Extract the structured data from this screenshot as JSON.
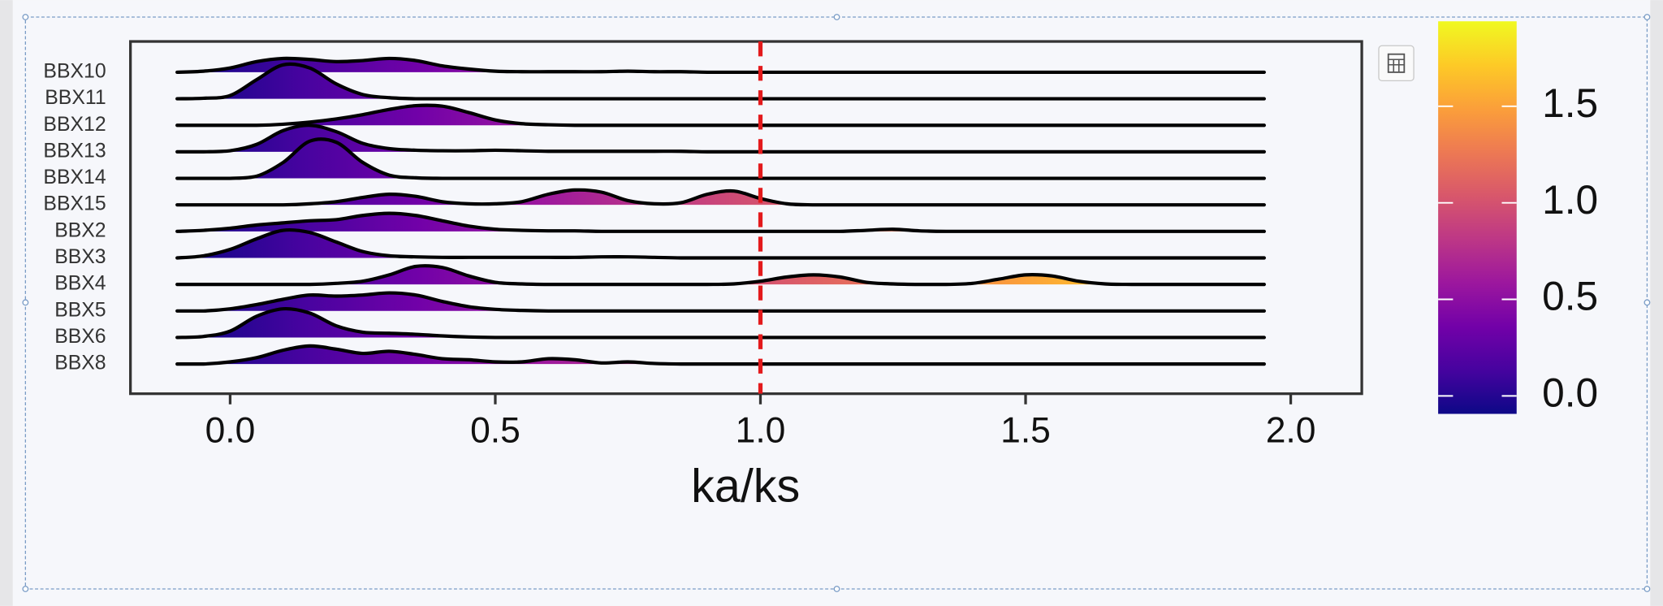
{
  "chart_data": {
    "type": "ridgeline",
    "x_label": "ka/ks",
    "x": [
      -0.1,
      -0.05,
      0,
      0.05,
      0.1,
      0.15,
      0.2,
      0.25,
      0.3,
      0.35,
      0.4,
      0.45,
      0.5,
      0.55,
      0.6,
      0.65,
      0.7,
      0.75,
      0.8,
      0.85,
      0.9,
      0.95,
      1.0,
      1.05,
      1.1,
      1.15,
      1.2,
      1.25,
      1.3,
      1.35,
      1.4,
      1.45,
      1.5,
      1.55,
      1.6,
      1.65,
      1.7,
      1.75,
      1.8,
      1.85,
      1.9,
      1.95
    ],
    "series": [
      {
        "name": "BBX10",
        "values": [
          0,
          0.1,
          0.4,
          1.0,
          1.3,
          1.2,
          1.0,
          1.1,
          1.3,
          1.1,
          0.6,
          0.3,
          0.1,
          0.05,
          0.05,
          0.05,
          0.05,
          0.1,
          0.05,
          0.05,
          0,
          0,
          0,
          0,
          0,
          0,
          0,
          0,
          0,
          0,
          0,
          0,
          0,
          0,
          0,
          0,
          0,
          0,
          0,
          0,
          0,
          0
        ]
      },
      {
        "name": "BBX11",
        "values": [
          0,
          0.05,
          0.3,
          1.8,
          3.2,
          2.9,
          1.4,
          0.4,
          0.1,
          0,
          0,
          0,
          0,
          0,
          0,
          0,
          0,
          0,
          0,
          0,
          0,
          0,
          0,
          0,
          0,
          0,
          0,
          0,
          0,
          0,
          0,
          0,
          0,
          0,
          0,
          0,
          0,
          0,
          0,
          0,
          0,
          0
        ]
      },
      {
        "name": "BBX12",
        "values": [
          0,
          0,
          0,
          0,
          0.1,
          0.3,
          0.6,
          1.0,
          1.5,
          1.85,
          1.8,
          1.2,
          0.5,
          0.15,
          0.05,
          0,
          0,
          0,
          0,
          0,
          0,
          0,
          0,
          0,
          0,
          0,
          0,
          0,
          0,
          0,
          0,
          0,
          0,
          0,
          0,
          0,
          0,
          0,
          0,
          0,
          0,
          0
        ]
      },
      {
        "name": "BBX13",
        "values": [
          0,
          0,
          0.1,
          0.7,
          2.0,
          2.5,
          1.9,
          0.8,
          0.3,
          0.15,
          0.1,
          0.1,
          0.15,
          0.1,
          0.05,
          0.05,
          0.05,
          0.05,
          0.05,
          0.05,
          0,
          0,
          0,
          0,
          0,
          0,
          0,
          0,
          0,
          0,
          0,
          0,
          0,
          0,
          0,
          0,
          0,
          0,
          0,
          0,
          0,
          0
        ]
      },
      {
        "name": "BBX14",
        "values": [
          0,
          0,
          0,
          0.2,
          1.5,
          3.5,
          3.4,
          1.5,
          0.3,
          0.05,
          0,
          0,
          0,
          0,
          0,
          0,
          0,
          0,
          0,
          0,
          0,
          0,
          0,
          0,
          0,
          0,
          0,
          0,
          0,
          0,
          0,
          0,
          0,
          0,
          0,
          0,
          0,
          0,
          0,
          0,
          0,
          0
        ]
      },
      {
        "name": "BBX15",
        "values": [
          0,
          0,
          0,
          0,
          0,
          0.1,
          0.3,
          0.7,
          1.0,
          0.8,
          0.3,
          0.1,
          0.1,
          0.3,
          1.0,
          1.4,
          1.2,
          0.4,
          0.1,
          0.2,
          1.0,
          1.3,
          0.6,
          0.1,
          0,
          0,
          0,
          0,
          0,
          0,
          0,
          0,
          0,
          0,
          0,
          0,
          0,
          0,
          0,
          0,
          0,
          0
        ]
      },
      {
        "name": "BBX2",
        "values": [
          0,
          0.1,
          0.3,
          0.6,
          0.8,
          1.0,
          1.1,
          1.5,
          1.7,
          1.5,
          1.0,
          0.5,
          0.2,
          0.1,
          0.05,
          0.05,
          0,
          0,
          0,
          0,
          0,
          0,
          0,
          0,
          0,
          0,
          0.1,
          0.2,
          0.05,
          0,
          0,
          0,
          0,
          0,
          0,
          0,
          0,
          0,
          0,
          0,
          0,
          0
        ]
      },
      {
        "name": "BBX3",
        "values": [
          0,
          0.2,
          0.8,
          1.8,
          2.6,
          2.4,
          1.5,
          0.6,
          0.2,
          0.1,
          0.05,
          0.05,
          0.05,
          0.05,
          0.05,
          0.05,
          0.1,
          0.1,
          0.05,
          0,
          0,
          0,
          0,
          0,
          0,
          0,
          0,
          0,
          0,
          0,
          0,
          0,
          0,
          0,
          0,
          0,
          0,
          0,
          0,
          0,
          0,
          0
        ]
      },
      {
        "name": "BBX4",
        "values": [
          0,
          0,
          0,
          0,
          0,
          0,
          0.1,
          0.3,
          0.9,
          1.7,
          1.6,
          0.8,
          0.2,
          0.05,
          0,
          0,
          0,
          0,
          0,
          0,
          0,
          0.05,
          0.3,
          0.7,
          0.9,
          0.7,
          0.2,
          0.05,
          0,
          0,
          0.1,
          0.5,
          0.9,
          0.8,
          0.3,
          0.05,
          0,
          0,
          0,
          0,
          0,
          0
        ]
      },
      {
        "name": "BBX5",
        "values": [
          0,
          0,
          0.2,
          0.6,
          1.1,
          1.5,
          1.4,
          1.5,
          1.7,
          1.5,
          0.9,
          0.4,
          0.15,
          0.05,
          0,
          0,
          0,
          0,
          0,
          0,
          0,
          0,
          0,
          0,
          0,
          0,
          0,
          0,
          0,
          0,
          0,
          0,
          0,
          0,
          0,
          0,
          0,
          0,
          0,
          0,
          0,
          0
        ]
      },
      {
        "name": "BBX6",
        "values": [
          0,
          0.1,
          0.6,
          2.0,
          2.7,
          2.3,
          1.1,
          0.5,
          0.4,
          0.3,
          0.15,
          0.05,
          0,
          0,
          0,
          0,
          0,
          0,
          0,
          0,
          0,
          0,
          0,
          0,
          0,
          0,
          0,
          0,
          0,
          0,
          0,
          0,
          0,
          0,
          0,
          0,
          0,
          0,
          0,
          0,
          0,
          0
        ]
      },
      {
        "name": "BBX8",
        "values": [
          0,
          0,
          0.2,
          0.6,
          1.3,
          1.7,
          1.4,
          1.0,
          1.2,
          0.9,
          0.5,
          0.4,
          0.2,
          0.2,
          0.5,
          0.4,
          0.1,
          0.2,
          0.05,
          0,
          0,
          0,
          0,
          0,
          0,
          0,
          0,
          0,
          0,
          0,
          0,
          0,
          0,
          0,
          0,
          0,
          0,
          0,
          0,
          0,
          0,
          0
        ]
      }
    ],
    "line_color": "#000000",
    "xlim": [
      -0.188,
      2.134
    ],
    "xticks": [
      {
        "value": 0,
        "label": "0.0"
      },
      {
        "value": 0.5,
        "label": "0.5"
      },
      {
        "value": 1,
        "label": "1.0"
      },
      {
        "value": 1.5,
        "label": "1.5"
      },
      {
        "value": 2,
        "label": "2.0"
      }
    ],
    "reference_line": {
      "x": 1,
      "color": "#e31a1c"
    },
    "colormap": [
      "#0d0887",
      "#46039f",
      "#7201a8",
      "#9c179e",
      "#bd3786",
      "#d8576b",
      "#ed7953",
      "#fb9f3a",
      "#fdca26",
      "#f0f921"
    ],
    "clim": [
      -0.093,
      1.94
    ],
    "colorbar_ticks": [
      {
        "value": 0,
        "label": "0.0"
      },
      {
        "value": 0.5,
        "label": "0.5"
      },
      {
        "value": 1,
        "label": "1.0"
      },
      {
        "value": 1.5,
        "label": "1.5"
      }
    ]
  }
}
